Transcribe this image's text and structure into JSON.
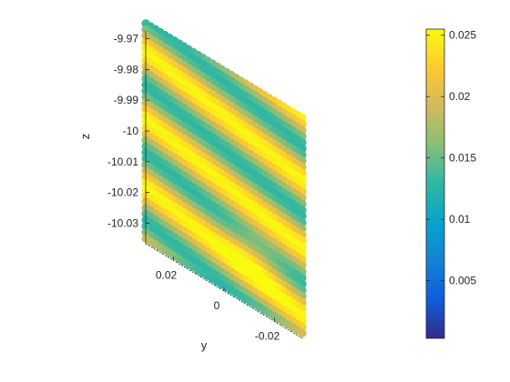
{
  "chart_data": {
    "type": "scatter",
    "title": "",
    "xlabel": "",
    "ylabel": "y",
    "zlabel": "z",
    "ylim": [
      -0.031,
      0.031
    ],
    "zlim": [
      -10.035,
      -9.965
    ],
    "y_ticks": [
      {
        "value": 0.02,
        "label": "0.02"
      },
      {
        "value": 0,
        "label": "0"
      },
      {
        "value": -0.02,
        "label": "-0.02"
      }
    ],
    "z_ticks": [
      {
        "value": -9.97,
        "label": "-9.97"
      },
      {
        "value": -9.98,
        "label": "-9.98"
      },
      {
        "value": -9.99,
        "label": "-9.99"
      },
      {
        "value": -10.0,
        "label": "-10"
      },
      {
        "value": -10.01,
        "label": "-10.01"
      },
      {
        "value": -10.02,
        "label": "-10.02"
      },
      {
        "value": -10.03,
        "label": "-10.03"
      }
    ],
    "colorbar": {
      "colormap": "parula",
      "range": [
        0.0003,
        0.0255
      ],
      "ticks": [
        {
          "value": 0.005,
          "label": "0.005"
        },
        {
          "value": 0.01,
          "label": "0.01"
        },
        {
          "value": 0.015,
          "label": "0.015"
        },
        {
          "value": 0.02,
          "label": "0.02"
        },
        {
          "value": 0.025,
          "label": "0.025"
        }
      ]
    },
    "grid": false,
    "legend": "none",
    "parula_stops": [
      "#352a87",
      "#0f5cdd",
      "#1481d6",
      "#06a4ca",
      "#2eb7a4",
      "#87bf77",
      "#d1bb59",
      "#fec832",
      "#f9fb0e"
    ]
  }
}
